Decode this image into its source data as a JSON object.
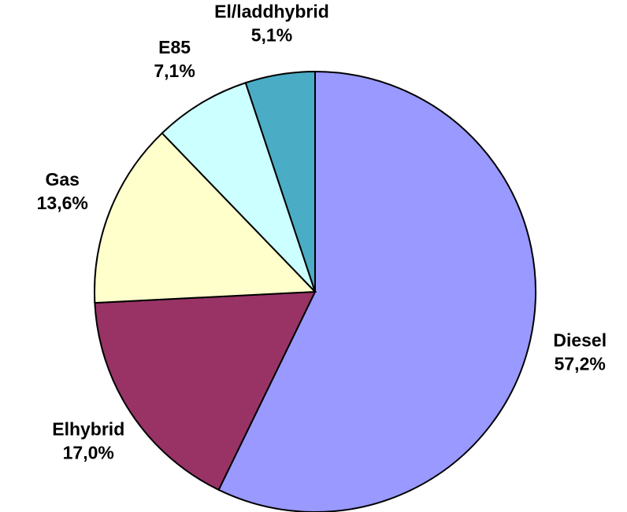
{
  "chart_data": {
    "type": "pie",
    "categories": [
      "Diesel",
      "Elhybrid",
      "Gas",
      "E85",
      "El/laddhybrid"
    ],
    "values": [
      57.2,
      17.0,
      13.6,
      7.1,
      5.1
    ],
    "value_labels": [
      "57,2%",
      "17,0%",
      "13,6%",
      "7,1%",
      "5,1%"
    ],
    "colors": [
      "#9999ff",
      "#993366",
      "#ffffcc",
      "#ccffff",
      "#4bacc6"
    ]
  }
}
